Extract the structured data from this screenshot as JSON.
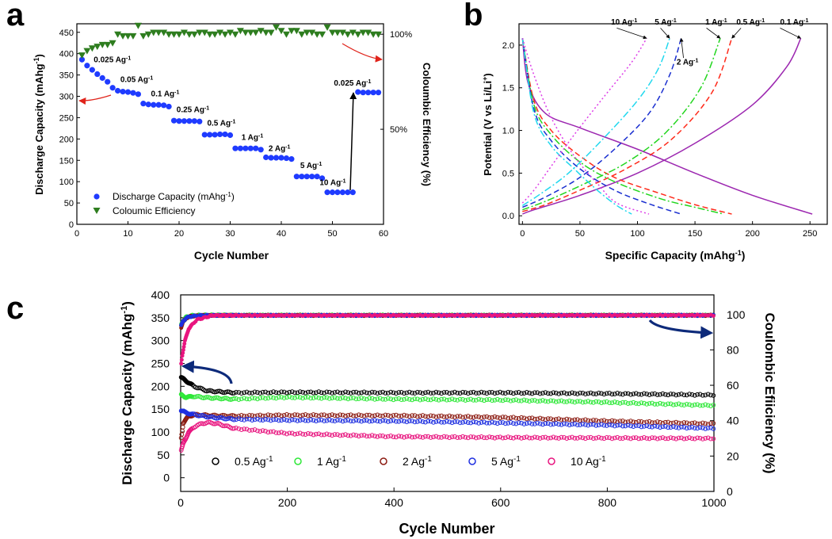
{
  "chart_data": [
    {
      "panel": "a",
      "type": "scatter",
      "xlabel": "Cycle Number",
      "ylabel": "Discharge Capacity (mAhg",
      "ylabel_sup": "-1",
      "ylabel_close": ")",
      "y2label": "Coloumbic Efficiency (%)",
      "xlim": [
        0,
        60
      ],
      "ylim": [
        0,
        470
      ],
      "xticks": [
        0,
        10,
        20,
        30,
        40,
        50,
        60
      ],
      "yticks": [
        0,
        50,
        100,
        150,
        200,
        250,
        300,
        350,
        400,
        450
      ],
      "y2ticks": [
        "100%",
        "50%"
      ],
      "y2tick_values": [
        100,
        50
      ],
      "y2lim": [
        0,
        115
      ],
      "legend": [
        {
          "label": "Discharge Capacity (mAhg",
          "sup": "-1",
          "close": ")",
          "marker": "circle",
          "color": "#1f3bff"
        },
        {
          "label": "Coloumic Efficiency",
          "sup": "",
          "close": "",
          "marker": "triangle-down",
          "color": "#2e7d1f"
        }
      ],
      "series": [
        {
          "name": "Discharge Capacity",
          "color": "#1f3bff",
          "x": [
            1,
            2,
            3,
            4,
            5,
            6,
            7,
            8,
            9,
            10,
            11,
            12,
            13,
            14,
            15,
            16,
            17,
            18,
            19,
            20,
            21,
            22,
            23,
            24,
            25,
            26,
            27,
            28,
            29,
            30,
            31,
            32,
            33,
            34,
            35,
            36,
            37,
            38,
            39,
            40,
            41,
            42,
            43,
            44,
            45,
            46,
            47,
            48,
            49,
            50,
            51,
            52,
            53,
            54,
            55,
            56,
            57,
            58,
            59
          ],
          "values": [
            386,
            372,
            362,
            352,
            343,
            334,
            320,
            313,
            311,
            310,
            308,
            305,
            283,
            281,
            280,
            280,
            279,
            276,
            243,
            242,
            242,
            242,
            242,
            241,
            210,
            210,
            210,
            211,
            211,
            209,
            178,
            178,
            178,
            178,
            178,
            175,
            157,
            156,
            156,
            156,
            155,
            153,
            112,
            112,
            112,
            112,
            112,
            108,
            75,
            75,
            75,
            75,
            75,
            75,
            310,
            309,
            309,
            309,
            309
          ]
        },
        {
          "name": "Coulombic Efficiency",
          "color": "#2e7d1f",
          "x": [
            1,
            2,
            3,
            4,
            5,
            6,
            7,
            8,
            9,
            10,
            11,
            12,
            13,
            14,
            15,
            16,
            17,
            18,
            19,
            20,
            21,
            22,
            23,
            24,
            25,
            26,
            27,
            28,
            29,
            30,
            31,
            32,
            33,
            34,
            35,
            36,
            37,
            38,
            39,
            40,
            41,
            42,
            43,
            44,
            45,
            46,
            47,
            48,
            49,
            50,
            51,
            52,
            53,
            54,
            55,
            56,
            57,
            58,
            59
          ],
          "values": [
            97,
            99.5,
            101,
            102,
            103,
            103,
            104,
            109,
            108,
            108,
            108,
            114,
            108,
            109,
            110,
            110,
            110,
            109,
            109,
            109,
            110,
            109,
            109,
            110,
            110,
            109,
            109,
            110,
            109,
            110,
            109,
            111,
            110,
            110,
            110,
            111,
            110,
            110,
            113,
            111,
            109,
            111,
            111,
            109,
            110,
            110,
            109,
            109,
            113,
            110,
            110,
            110,
            109,
            110,
            109,
            110,
            110,
            109,
            109
          ]
        }
      ],
      "annotations": [
        {
          "text": "0.025 Ag",
          "sup": "-1",
          "x": 3.3,
          "y": 380
        },
        {
          "text": "0.05 Ag",
          "sup": "-1",
          "x": 8.5,
          "y": 333
        },
        {
          "text": "0.1 Ag",
          "sup": "-1",
          "x": 14.5,
          "y": 300
        },
        {
          "text": "0.25 Ag",
          "sup": "-1",
          "x": 19.5,
          "y": 263
        },
        {
          "text": "0.5 Ag",
          "sup": "-1",
          "x": 25.5,
          "y": 231
        },
        {
          "text": "1 Ag",
          "sup": "-1",
          "x": 32.2,
          "y": 198
        },
        {
          "text": "2 Ag",
          "sup": "-1",
          "x": 37.5,
          "y": 172
        },
        {
          "text": "5 Ag",
          "sup": "-1",
          "x": 43.7,
          "y": 132
        },
        {
          "text": "10 Ag",
          "sup": "-1",
          "x": 47.5,
          "y": 92
        },
        {
          "text": "0.025 Ag",
          "sup": "-1",
          "x": 50.3,
          "y": 325
        }
      ]
    },
    {
      "panel": "b",
      "type": "line",
      "xlabel": "Specific Capacity (mAhg",
      "xlabel_sup": "-1",
      "xlabel_close": ")",
      "ylabel": "Potential (V vs Li/Li",
      "ylabel_sup": "+",
      "ylabel_close": ")",
      "xlim": [
        -3,
        265
      ],
      "ylim": [
        -0.1,
        2.25
      ],
      "xticks": [
        0,
        50,
        100,
        150,
        200,
        250
      ],
      "yticks": [
        0.0,
        0.5,
        1.0,
        1.5,
        2.0
      ],
      "series": [
        {
          "name": "0.1 Ag-1",
          "color": "#9c27b0",
          "dash": "solid",
          "discharge": [
            [
              0,
              2.08
            ],
            [
              5,
              1.55
            ],
            [
              20,
              1.2
            ],
            [
              50,
              1.03
            ],
            [
              100,
              0.78
            ],
            [
              150,
              0.5
            ],
            [
              200,
              0.24
            ],
            [
              252,
              0.02
            ]
          ],
          "charge": [
            [
              0,
              0.02
            ],
            [
              10,
              0.07
            ],
            [
              50,
              0.24
            ],
            [
              100,
              0.5
            ],
            [
              150,
              0.85
            ],
            [
              200,
              1.3
            ],
            [
              230,
              1.75
            ],
            [
              242,
              2.08
            ]
          ]
        },
        {
          "name": "0.5 Ag-1",
          "color": "#ff2a1a",
          "dash": "dashed",
          "discharge": [
            [
              0,
              2.08
            ],
            [
              10,
              1.35
            ],
            [
              25,
              1.0
            ],
            [
              50,
              0.7
            ],
            [
              80,
              0.45
            ],
            [
              120,
              0.26
            ],
            [
              150,
              0.13
            ],
            [
              182,
              0.02
            ]
          ],
          "charge": [
            [
              0,
              0.05
            ],
            [
              20,
              0.13
            ],
            [
              50,
              0.3
            ],
            [
              90,
              0.55
            ],
            [
              130,
              0.9
            ],
            [
              165,
              1.45
            ],
            [
              182,
              2.08
            ]
          ]
        },
        {
          "name": "1 Ag-1",
          "color": "#22d61e",
          "dash": "dashdot",
          "discharge": [
            [
              0,
              2.08
            ],
            [
              10,
              1.3
            ],
            [
              25,
              0.95
            ],
            [
              50,
              0.63
            ],
            [
              80,
              0.4
            ],
            [
              120,
              0.2
            ],
            [
              150,
              0.1
            ],
            [
              175,
              0.02
            ]
          ],
          "charge": [
            [
              0,
              0.07
            ],
            [
              20,
              0.17
            ],
            [
              50,
              0.35
            ],
            [
              90,
              0.62
            ],
            [
              125,
              0.98
            ],
            [
              155,
              1.5
            ],
            [
              172,
              2.08
            ]
          ]
        },
        {
          "name": "2 Ag-1",
          "color": "#1a2fd0",
          "dash": "dashed",
          "discharge": [
            [
              0,
              2.08
            ],
            [
              10,
              1.25
            ],
            [
              25,
              0.88
            ],
            [
              50,
              0.55
            ],
            [
              80,
              0.3
            ],
            [
              110,
              0.14
            ],
            [
              138,
              0.02
            ]
          ],
          "charge": [
            [
              0,
              0.1
            ],
            [
              20,
              0.22
            ],
            [
              50,
              0.45
            ],
            [
              80,
              0.78
            ],
            [
              110,
              1.2
            ],
            [
              128,
              1.65
            ],
            [
              138,
              2.08
            ]
          ]
        },
        {
          "name": "5 Ag-1",
          "color": "#20d8ee",
          "dash": "dashdot",
          "discharge": [
            [
              0,
              2.08
            ],
            [
              10,
              1.2
            ],
            [
              25,
              0.82
            ],
            [
              45,
              0.55
            ],
            [
              65,
              0.3
            ],
            [
              82,
              0.12
            ],
            [
              95,
              0.02
            ]
          ],
          "charge": [
            [
              0,
              0.12
            ],
            [
              15,
              0.25
            ],
            [
              40,
              0.5
            ],
            [
              70,
              0.9
            ],
            [
              100,
              1.35
            ],
            [
              118,
              1.72
            ],
            [
              128,
              2.08
            ]
          ]
        },
        {
          "name": "10 Ag-1",
          "color": "#dd3de8",
          "dash": "dotted",
          "discharge": [
            [
              0,
              2.08
            ],
            [
              10,
              1.65
            ],
            [
              25,
              1.15
            ],
            [
              45,
              0.7
            ],
            [
              65,
              0.38
            ],
            [
              82,
              0.15
            ],
            [
              110,
              0.02
            ]
          ],
          "charge": [
            [
              0,
              0.15
            ],
            [
              10,
              0.3
            ],
            [
              25,
              0.58
            ],
            [
              45,
              0.95
            ],
            [
              70,
              1.38
            ],
            [
              95,
              1.8
            ],
            [
              108,
              2.08
            ]
          ]
        }
      ],
      "annotations": [
        {
          "text": "10 Ag",
          "sup": "-1",
          "x": 77,
          "y": 2.24
        },
        {
          "text": "5 Ag",
          "sup": "-1",
          "x": 115,
          "y": 2.24
        },
        {
          "text": "2 Ag",
          "sup": "-1",
          "x": 134,
          "y": 1.77
        },
        {
          "text": "1 Ag",
          "sup": "-1",
          "x": 159,
          "y": 2.24
        },
        {
          "text": "0.5 Ag",
          "sup": "-1",
          "x": 186,
          "y": 2.24
        },
        {
          "text": "0.1 Ag",
          "sup": "-1",
          "x": 224,
          "y": 2.24
        }
      ]
    },
    {
      "panel": "c",
      "type": "scatter",
      "xlabel": "Cycle Number",
      "ylabel": "Discharge Capacity (mAhg",
      "ylabel_sup": "-1",
      "ylabel_close": ")",
      "y2label": "Coulombic Efiiciency (%)",
      "xlim": [
        0,
        1000
      ],
      "ylim": [
        -30,
        400
      ],
      "xticks": [
        0,
        200,
        400,
        600,
        800,
        1000
      ],
      "yticks": [
        0,
        50,
        100,
        150,
        200,
        250,
        300,
        350,
        400
      ],
      "y2lim": [
        0,
        111.1
      ],
      "y2ticks": [
        0,
        20,
        40,
        60,
        80,
        100
      ],
      "legend": [
        {
          "label": "0.5 Ag",
          "sup": "-1",
          "color": "#000000"
        },
        {
          "label": "1 Ag",
          "sup": "-1",
          "color": "#2ee838"
        },
        {
          "label": "2 Ag",
          "sup": "-1",
          "color": "#8b1a10"
        },
        {
          "label": "5 Ag",
          "sup": "-1",
          "color": "#1e2fe0"
        },
        {
          "label": "10 Ag",
          "sup": "-1",
          "color": "#e8157f"
        }
      ],
      "series": [
        {
          "name": "0.5 Ag-1",
          "color": "#000000",
          "capacity_x": [
            0,
            10,
            25,
            50,
            100,
            200,
            400,
            600,
            800,
            1000
          ],
          "capacity": [
            220,
            212,
            200,
            190,
            186,
            187,
            186,
            186,
            184,
            181
          ],
          "efficiency_x": [
            0,
            5,
            10,
            20,
            40,
            1000
          ],
          "efficiency": [
            93,
            96,
            98,
            99,
            99.5,
            99.5
          ]
        },
        {
          "name": "1 Ag-1",
          "color": "#2ee838",
          "capacity_x": [
            0,
            10,
            25,
            50,
            100,
            200,
            400,
            600,
            800,
            1000
          ],
          "capacity": [
            182,
            176,
            178,
            175,
            172,
            176,
            172,
            170,
            165,
            158
          ],
          "efficiency_x": [
            0,
            5,
            10,
            20,
            40,
            1000
          ],
          "efficiency": [
            94,
            97,
            98.5,
            99.5,
            99.7,
            99.7
          ]
        },
        {
          "name": "2 Ag-1",
          "color": "#8b1a10",
          "capacity_x": [
            0,
            5,
            15,
            30,
            60,
            100,
            200,
            400,
            600,
            800,
            1000
          ],
          "capacity": [
            80,
            120,
            135,
            138,
            136,
            135,
            137,
            136,
            132,
            124,
            118
          ],
          "efficiency_x": [
            0,
            5,
            10,
            20,
            40,
            1000
          ],
          "efficiency": [
            92,
            96,
            98,
            99,
            99.5,
            99.5
          ]
        },
        {
          "name": "5 Ag-1",
          "color": "#1e2fe0",
          "capacity_x": [
            0,
            10,
            30,
            60,
            100,
            200,
            400,
            600,
            800,
            1000
          ],
          "capacity": [
            148,
            142,
            137,
            132,
            128,
            126,
            124,
            120,
            115,
            108
          ],
          "efficiency_x": [
            0,
            5,
            10,
            20,
            40,
            1000
          ],
          "efficiency": [
            93,
            96.5,
            98,
            99,
            99.5,
            99.5
          ]
        },
        {
          "name": "10 Ag-1",
          "color": "#e8157f",
          "capacity_x": [
            0,
            5,
            15,
            30,
            50,
            70,
            100,
            200,
            400,
            600,
            800,
            1000
          ],
          "capacity": [
            55,
            75,
            100,
            115,
            121,
            118,
            108,
            97,
            90,
            88,
            87,
            86
          ],
          "efficiency_x": [
            0,
            3,
            8,
            15,
            30,
            60,
            1000
          ],
          "efficiency": [
            70,
            77,
            85,
            92,
            97,
            99.5,
            99.6
          ]
        }
      ]
    }
  ],
  "panels": {
    "a": "a",
    "b": "b",
    "c": "c"
  }
}
